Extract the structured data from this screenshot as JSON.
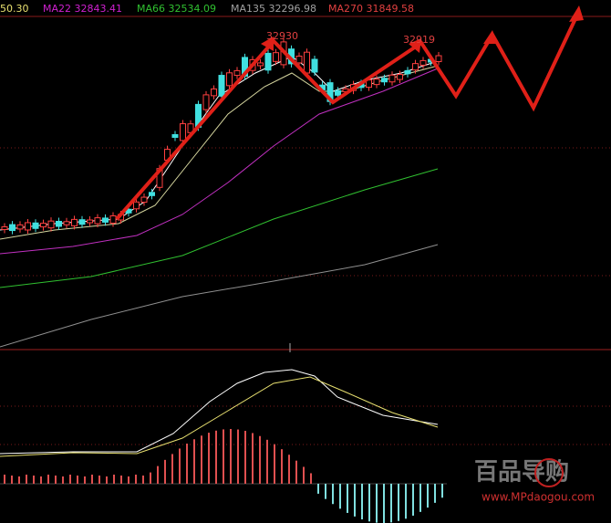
{
  "header": {
    "last_value": "50.30",
    "ma22": "MA22 32843.41",
    "ma66": "MA66 32534.09",
    "ma135": "MA135 32296.98",
    "ma270": "MA270 31849.58"
  },
  "annotations": {
    "high_1": "32930",
    "high_2": "32919"
  },
  "watermark": {
    "brand": "百品导购",
    "url": "www.MPdaogou.com"
  }
}
